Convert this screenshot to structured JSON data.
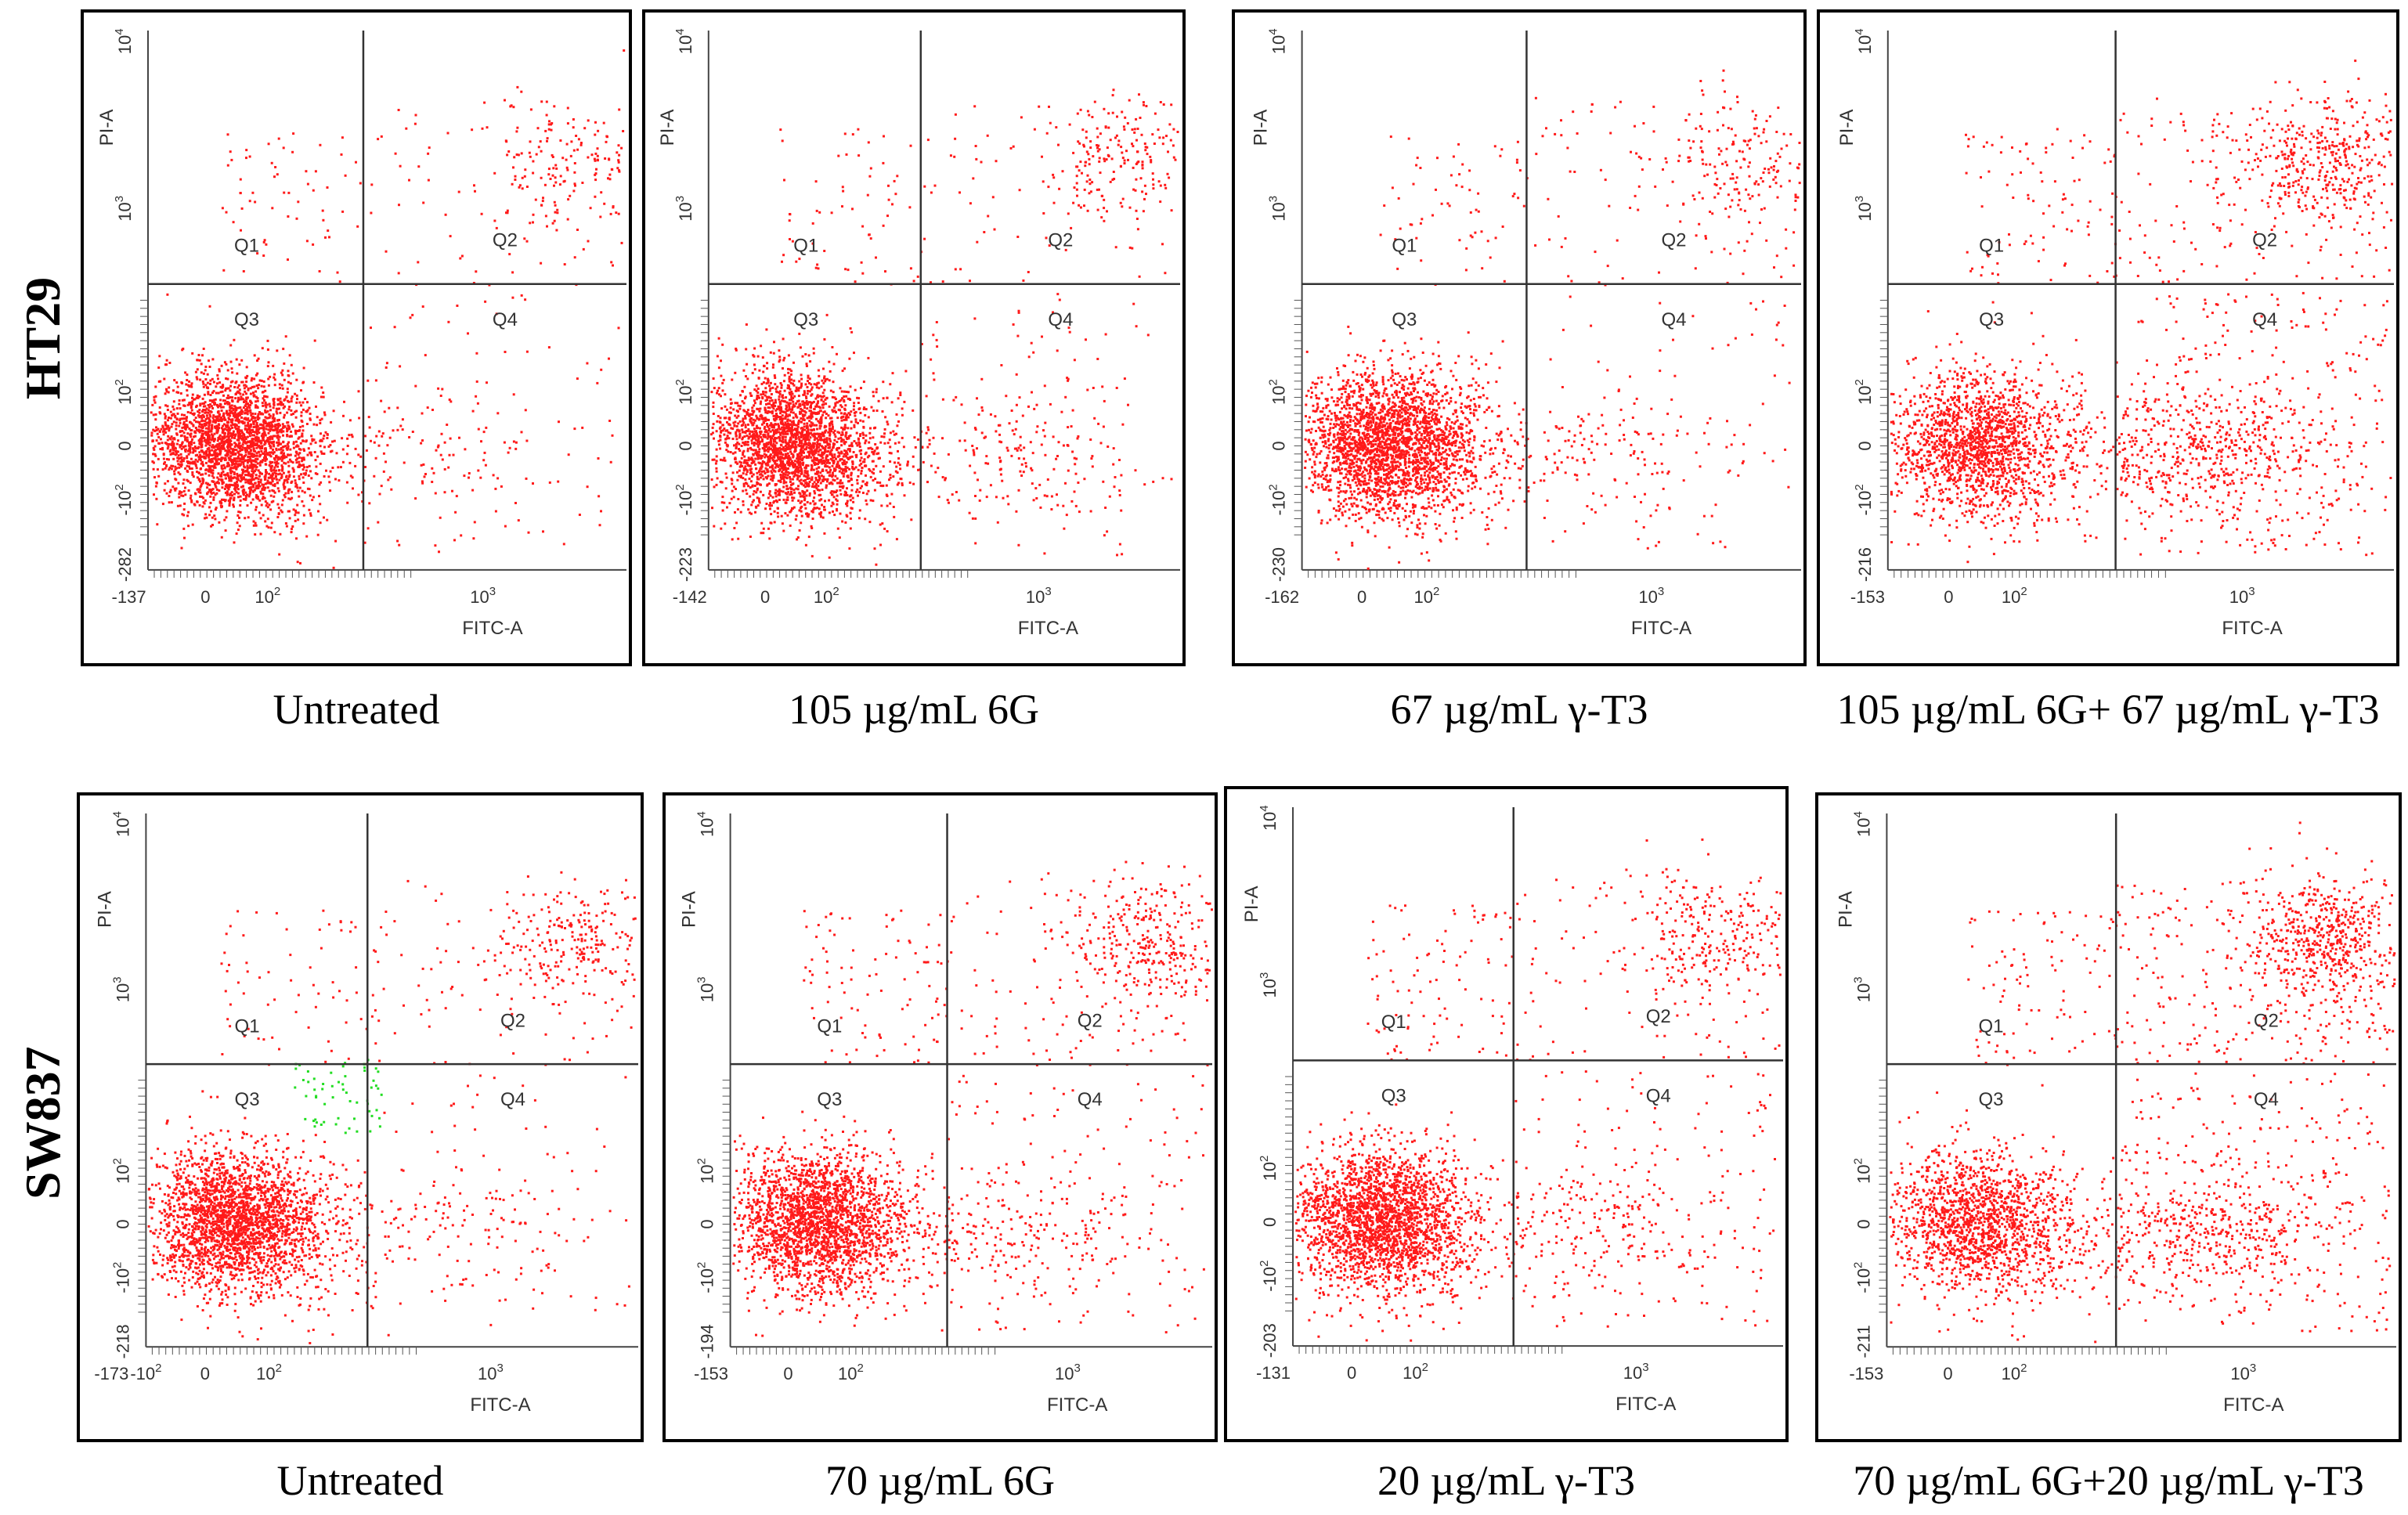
{
  "figure": {
    "row_labels": [
      "HT29",
      "SW837"
    ]
  },
  "chart_data": [
    {
      "type": "scatter",
      "row": "HT29",
      "caption": "Untreated",
      "xlabel": "FITC-A",
      "ylabel": "PI-A",
      "x_ticks": [
        "-137",
        "0",
        "10^2",
        "10^3"
      ],
      "y_ticks": [
        "-282",
        "-10^2",
        "0",
        "10^2",
        "10^3",
        "10^4"
      ],
      "quadrants": [
        "Q1",
        "Q2",
        "Q3",
        "Q4"
      ],
      "populations": {
        "Q3": 0.86,
        "Q4": 0.05,
        "Q2": 0.07,
        "Q1": 0.02
      }
    },
    {
      "type": "scatter",
      "row": "HT29",
      "caption": "105 µg/mL 6G",
      "xlabel": "FITC-A",
      "ylabel": "PI-A",
      "x_ticks": [
        "-142",
        "0",
        "10^2",
        "10^3"
      ],
      "y_ticks": [
        "-223",
        "-10^2",
        "0",
        "10^2",
        "10^3",
        "10^4"
      ],
      "quadrants": [
        "Q1",
        "Q2",
        "Q3",
        "Q4"
      ],
      "populations": {
        "Q3": 0.82,
        "Q4": 0.08,
        "Q2": 0.08,
        "Q1": 0.02
      }
    },
    {
      "type": "scatter",
      "row": "HT29",
      "caption": "67 µg/mL γ-T3",
      "xlabel": "FITC-A",
      "ylabel": "PI-A",
      "x_ticks": [
        "-162",
        "0",
        "10^2",
        "10^3"
      ],
      "y_ticks": [
        "-230",
        "-10^2",
        "0",
        "10^2",
        "10^3",
        "10^4"
      ],
      "quadrants": [
        "Q1",
        "Q2",
        "Q3",
        "Q4"
      ],
      "populations": {
        "Q3": 0.84,
        "Q4": 0.06,
        "Q2": 0.08,
        "Q1": 0.02
      }
    },
    {
      "type": "scatter",
      "row": "HT29",
      "caption": "105 µg/mL 6G+ 67 µg/mL γ-T3",
      "xlabel": "FITC-A",
      "ylabel": "PI-A",
      "x_ticks": [
        "-153",
        "0",
        "10^2",
        "10^3"
      ],
      "y_ticks": [
        "-216",
        "-10^2",
        "0",
        "10^2",
        "10^3",
        "10^4"
      ],
      "quadrants": [
        "Q1",
        "Q2",
        "Q3",
        "Q4"
      ],
      "populations": {
        "Q3": 0.55,
        "Q4": 0.25,
        "Q2": 0.17,
        "Q1": 0.03
      }
    },
    {
      "type": "scatter",
      "row": "SW837",
      "caption": "Untreated",
      "xlabel": "FITC-A",
      "ylabel": "PI-A",
      "x_ticks": [
        "-173",
        "-10^2",
        "0",
        "10^2",
        "10^3"
      ],
      "y_ticks": [
        "-218",
        "-10^2",
        "0",
        "10^2",
        "10^3",
        "10^4"
      ],
      "quadrants": [
        "Q1",
        "Q2",
        "Q3",
        "Q4"
      ],
      "populations": {
        "Q3": 0.82,
        "Q4": 0.06,
        "Q2": 0.1,
        "Q1": 0.02
      }
    },
    {
      "type": "scatter",
      "row": "SW837",
      "caption": "70 µg/mL 6G",
      "xlabel": "FITC-A",
      "ylabel": "PI-A",
      "x_ticks": [
        "-153",
        "0",
        "10^2",
        "10^3"
      ],
      "y_ticks": [
        "-194",
        "-10^2",
        "0",
        "10^2",
        "10^3",
        "10^4"
      ],
      "quadrants": [
        "Q1",
        "Q2",
        "Q3",
        "Q4"
      ],
      "populations": {
        "Q3": 0.74,
        "Q4": 0.1,
        "Q2": 0.13,
        "Q1": 0.03
      }
    },
    {
      "type": "scatter",
      "row": "SW837",
      "caption": "20 µg/mL γ-T3",
      "xlabel": "FITC-A",
      "ylabel": "PI-A",
      "x_ticks": [
        "-131",
        "0",
        "10^2",
        "10^3"
      ],
      "y_ticks": [
        "-203",
        "-10^2",
        "0",
        "10^2",
        "10^3",
        "10^4"
      ],
      "quadrants": [
        "Q1",
        "Q2",
        "Q3",
        "Q4"
      ],
      "populations": {
        "Q3": 0.76,
        "Q4": 0.1,
        "Q2": 0.11,
        "Q1": 0.03
      }
    },
    {
      "type": "scatter",
      "row": "SW837",
      "caption": "70 µg/mL 6G+20 µg/mL γ-T3",
      "xlabel": "FITC-A",
      "ylabel": "PI-A",
      "x_ticks": [
        "-153",
        "0",
        "10^2",
        "10^3"
      ],
      "y_ticks": [
        "-211",
        "-10^2",
        "0",
        "10^2",
        "10^3",
        "10^4"
      ],
      "quadrants": [
        "Q1",
        "Q2",
        "Q3",
        "Q4"
      ],
      "populations": {
        "Q3": 0.5,
        "Q4": 0.22,
        "Q2": 0.25,
        "Q1": 0.03
      }
    }
  ],
  "colors": {
    "dots": "#ff1a1a",
    "gate_dots": "#22dd22",
    "lines": "#333333",
    "frame": "#000000"
  }
}
